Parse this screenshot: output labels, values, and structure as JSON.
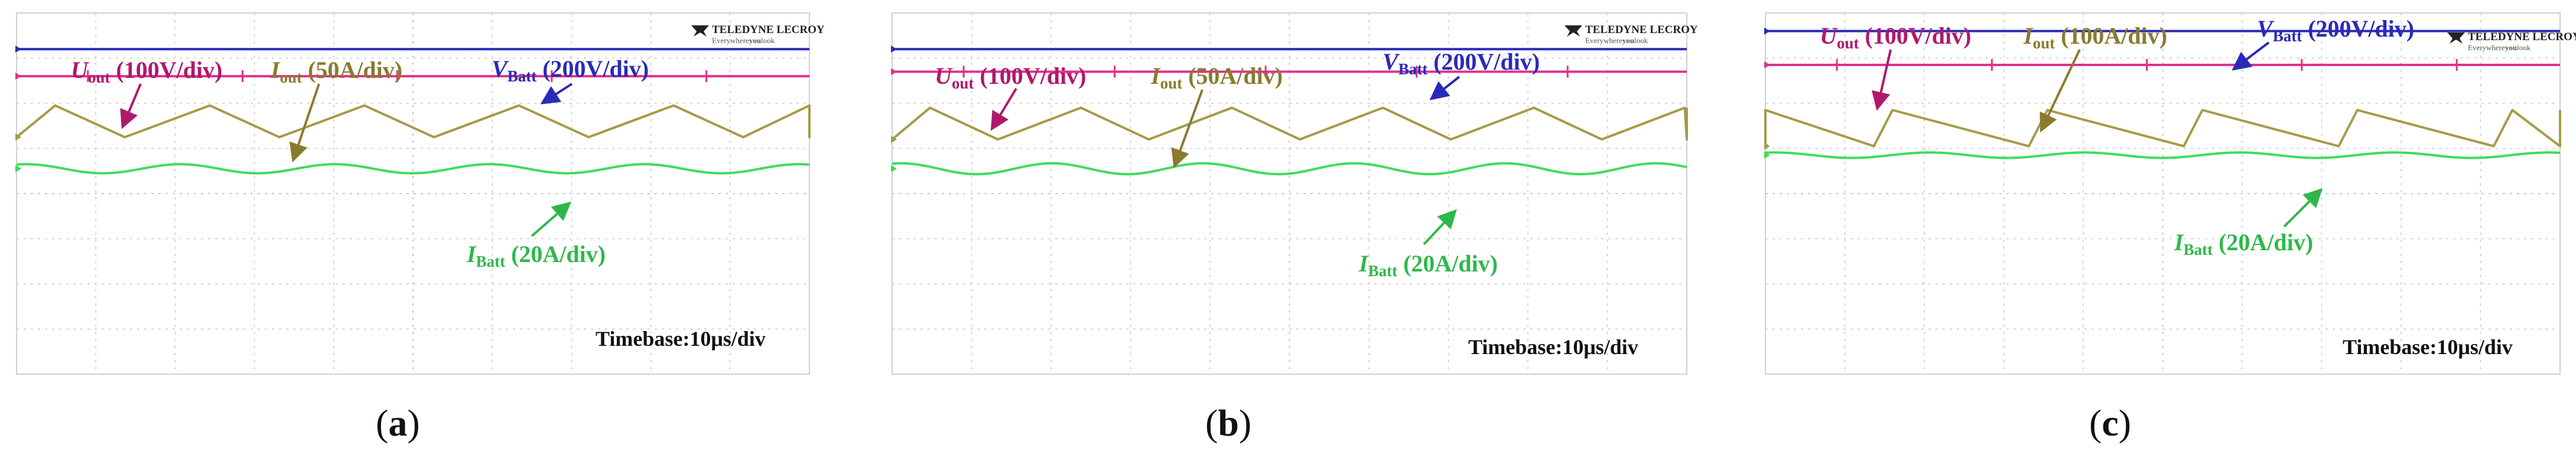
{
  "chart_data": [
    {
      "type": "line",
      "panel_label": "a",
      "brand_name": "TELEDYNE LECROY",
      "brand_tagline": "Everywhere",
      "brand_tagline_em": "you",
      "brand_tagline_end": "look",
      "timebase": "Timebase:10μs/div",
      "x_divisions": 10,
      "y_divisions": 8,
      "grid": true,
      "annotations": [
        {
          "sym": "U",
          "sub": "out",
          "scale": " (100V/div)",
          "color": "#b0186e"
        },
        {
          "sym": "I",
          "sub": "out",
          "scale": " (50A/div)",
          "color": "#8a7a2e"
        },
        {
          "sym": "V",
          "sub": "Batt",
          "scale": " (200V/div)",
          "color": "#2a2ab8"
        },
        {
          "sym": "I",
          "sub": "Batt",
          "scale": " (20A/div)",
          "color": "#2fb84a"
        }
      ],
      "series": [
        {
          "name": "V_Batt",
          "color": "#2a2ab8",
          "level_div": 7.2
        },
        {
          "name": "U_out",
          "color": "#e0318c",
          "level_div": 6.6,
          "spike_period_div": 1.95
        },
        {
          "name": "I_out",
          "color": "#a69a48",
          "shape": "triangle",
          "baseline_div": 5.25,
          "peak_div": 5.95,
          "period_div": 1.95,
          "rise_fraction": 0.55
        },
        {
          "name": "I_Batt",
          "color": "#3fdc5a",
          "shape": "ripple",
          "level_div": 4.55,
          "ripple_amp_div": 0.1,
          "period_div": 1.95
        }
      ]
    },
    {
      "type": "line",
      "panel_label": "b",
      "brand_name": "TELEDYNE LECROY",
      "brand_tagline": "Everywhere",
      "brand_tagline_em": "you",
      "brand_tagline_end": "look",
      "timebase": "Timebase:10μs/div",
      "x_divisions": 10,
      "y_divisions": 8,
      "grid": true,
      "annotations": [
        {
          "sym": "U",
          "sub": "out",
          "scale": " (100V/div)",
          "color": "#b0186e"
        },
        {
          "sym": "I",
          "sub": "out",
          "scale": " (50A/div)",
          "color": "#8a7a2e"
        },
        {
          "sym": "V",
          "sub": "Batt",
          "scale": " (200V/div)",
          "color": "#2a2ab8"
        },
        {
          "sym": "I",
          "sub": "Batt",
          "scale": " (20A/div)",
          "color": "#2fb84a"
        }
      ],
      "series": [
        {
          "name": "V_Batt",
          "color": "#2a2ab8",
          "level_div": 7.2
        },
        {
          "name": "U_out",
          "color": "#e0318c",
          "level_div": 6.7,
          "spike_period_div": 1.9
        },
        {
          "name": "I_out",
          "color": "#a69a48",
          "shape": "triangle",
          "baseline_div": 5.2,
          "peak_div": 5.9,
          "period_div": 1.9,
          "rise_fraction": 0.55
        },
        {
          "name": "I_Batt",
          "color": "#3fdc5a",
          "shape": "ripple",
          "level_div": 4.55,
          "ripple_amp_div": 0.12,
          "period_div": 1.9
        }
      ]
    },
    {
      "type": "line",
      "panel_label": "c",
      "brand_name": "TELEDYNE LECROY",
      "brand_tagline": "Everywhere",
      "brand_tagline_em": "you",
      "brand_tagline_end": "look",
      "timebase": "Timebase:10μs/div",
      "x_divisions": 10,
      "y_divisions": 8,
      "grid": true,
      "annotations": [
        {
          "sym": "U",
          "sub": "out",
          "scale": " (100V/div)",
          "color": "#b0186e"
        },
        {
          "sym": "I",
          "sub": "out",
          "scale": " (100A/div)",
          "color": "#8a7a2e"
        },
        {
          "sym": "V",
          "sub": "Batt",
          "scale": " (200V/div)",
          "color": "#2a2ab8"
        },
        {
          "sym": "I",
          "sub": "Batt",
          "scale": " (20A/div)",
          "color": "#2fb84a"
        }
      ],
      "series": [
        {
          "name": "V_Batt",
          "color": "#2a2ab8",
          "level_div": 7.6
        },
        {
          "name": "U_out",
          "color": "#e0318c",
          "level_div": 6.85,
          "spike_period_div": 1.95
        },
        {
          "name": "I_out",
          "color": "#a69a48",
          "shape": "sawtooth",
          "baseline_div": 5.05,
          "peak_div": 5.85,
          "period_div": 1.95,
          "rise_fraction": 0.12
        },
        {
          "name": "I_Batt",
          "color": "#3fdc5a",
          "shape": "ripple",
          "level_div": 4.85,
          "ripple_amp_div": 0.06,
          "period_div": 1.95
        }
      ]
    }
  ]
}
